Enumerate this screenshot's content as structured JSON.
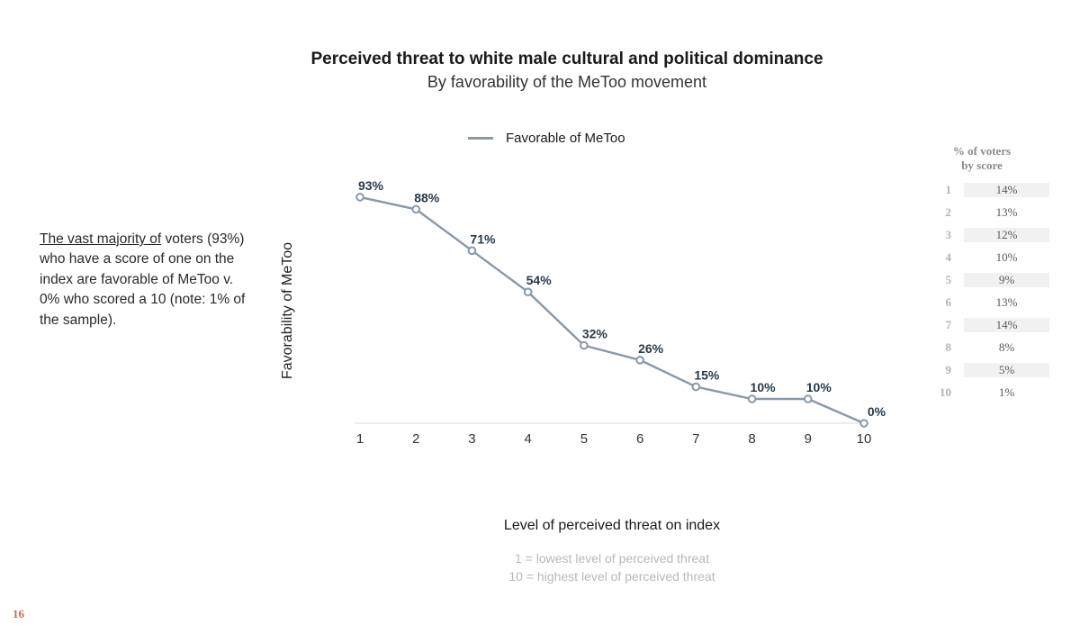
{
  "page_number": "16",
  "title": "Perceived threat to white male cultural and political dominance",
  "subtitle": "By favorability of the MeToo movement",
  "legend_label": "Favorable of MeToo",
  "annotation_underlined": "The vast majority of",
  "annotation_rest": " voters (93%) who have a score of one on the index are favorable of MeToo v. 0% who scored a 10 (note: 1% of the sample).",
  "chart": {
    "type": "line",
    "ylabel": "Favorability of MeToo",
    "xlabel": "Level of perceived threat on index",
    "xnote_line1": "1 = lowest level of perceived threat",
    "xnote_line2": "10 = highest level of perceived threat",
    "x_categories": [
      "1",
      "2",
      "3",
      "4",
      "5",
      "6",
      "7",
      "8",
      "9",
      "10"
    ],
    "series": {
      "name": "Favorable of MeToo",
      "color": "#8a98a8",
      "marker_fill": "#ffffff",
      "marker_stroke": "#8a98a8",
      "values_pct": [
        93,
        88,
        71,
        54,
        32,
        26,
        15,
        10,
        10,
        0
      ],
      "labels": [
        "93%",
        "88%",
        "71%",
        "54%",
        "32%",
        "26%",
        "15%",
        "10%",
        "10%",
        "0%"
      ]
    },
    "ylim": [
      0,
      100
    ],
    "line_width": 2.4,
    "marker_radius": 3.8,
    "background_color": "#ffffff",
    "axis_color": "#d9d9d9",
    "text_color": "#333333",
    "label_fontsize": 14,
    "tick_fontsize": 15,
    "axis_label_fontsize": 16
  },
  "side_table": {
    "header_line1": "% of voters",
    "header_line2": "by score",
    "rows": [
      {
        "score": "1",
        "pct": "14%"
      },
      {
        "score": "2",
        "pct": "13%"
      },
      {
        "score": "3",
        "pct": "12%"
      },
      {
        "score": "4",
        "pct": "10%"
      },
      {
        "score": "5",
        "pct": "9%"
      },
      {
        "score": "6",
        "pct": "13%"
      },
      {
        "score": "7",
        "pct": "14%"
      },
      {
        "score": "8",
        "pct": "8%"
      },
      {
        "score": "9",
        "pct": "5%"
      },
      {
        "score": "10",
        "pct": "1%"
      }
    ]
  },
  "colors": {
    "page_num": "#d1694f",
    "muted_text": "#b8b8b8",
    "side_header": "#8a8a8a",
    "side_key": "#b3b3b3",
    "side_val": "#5a5a5a",
    "side_stripe": "#f1f1f1"
  }
}
